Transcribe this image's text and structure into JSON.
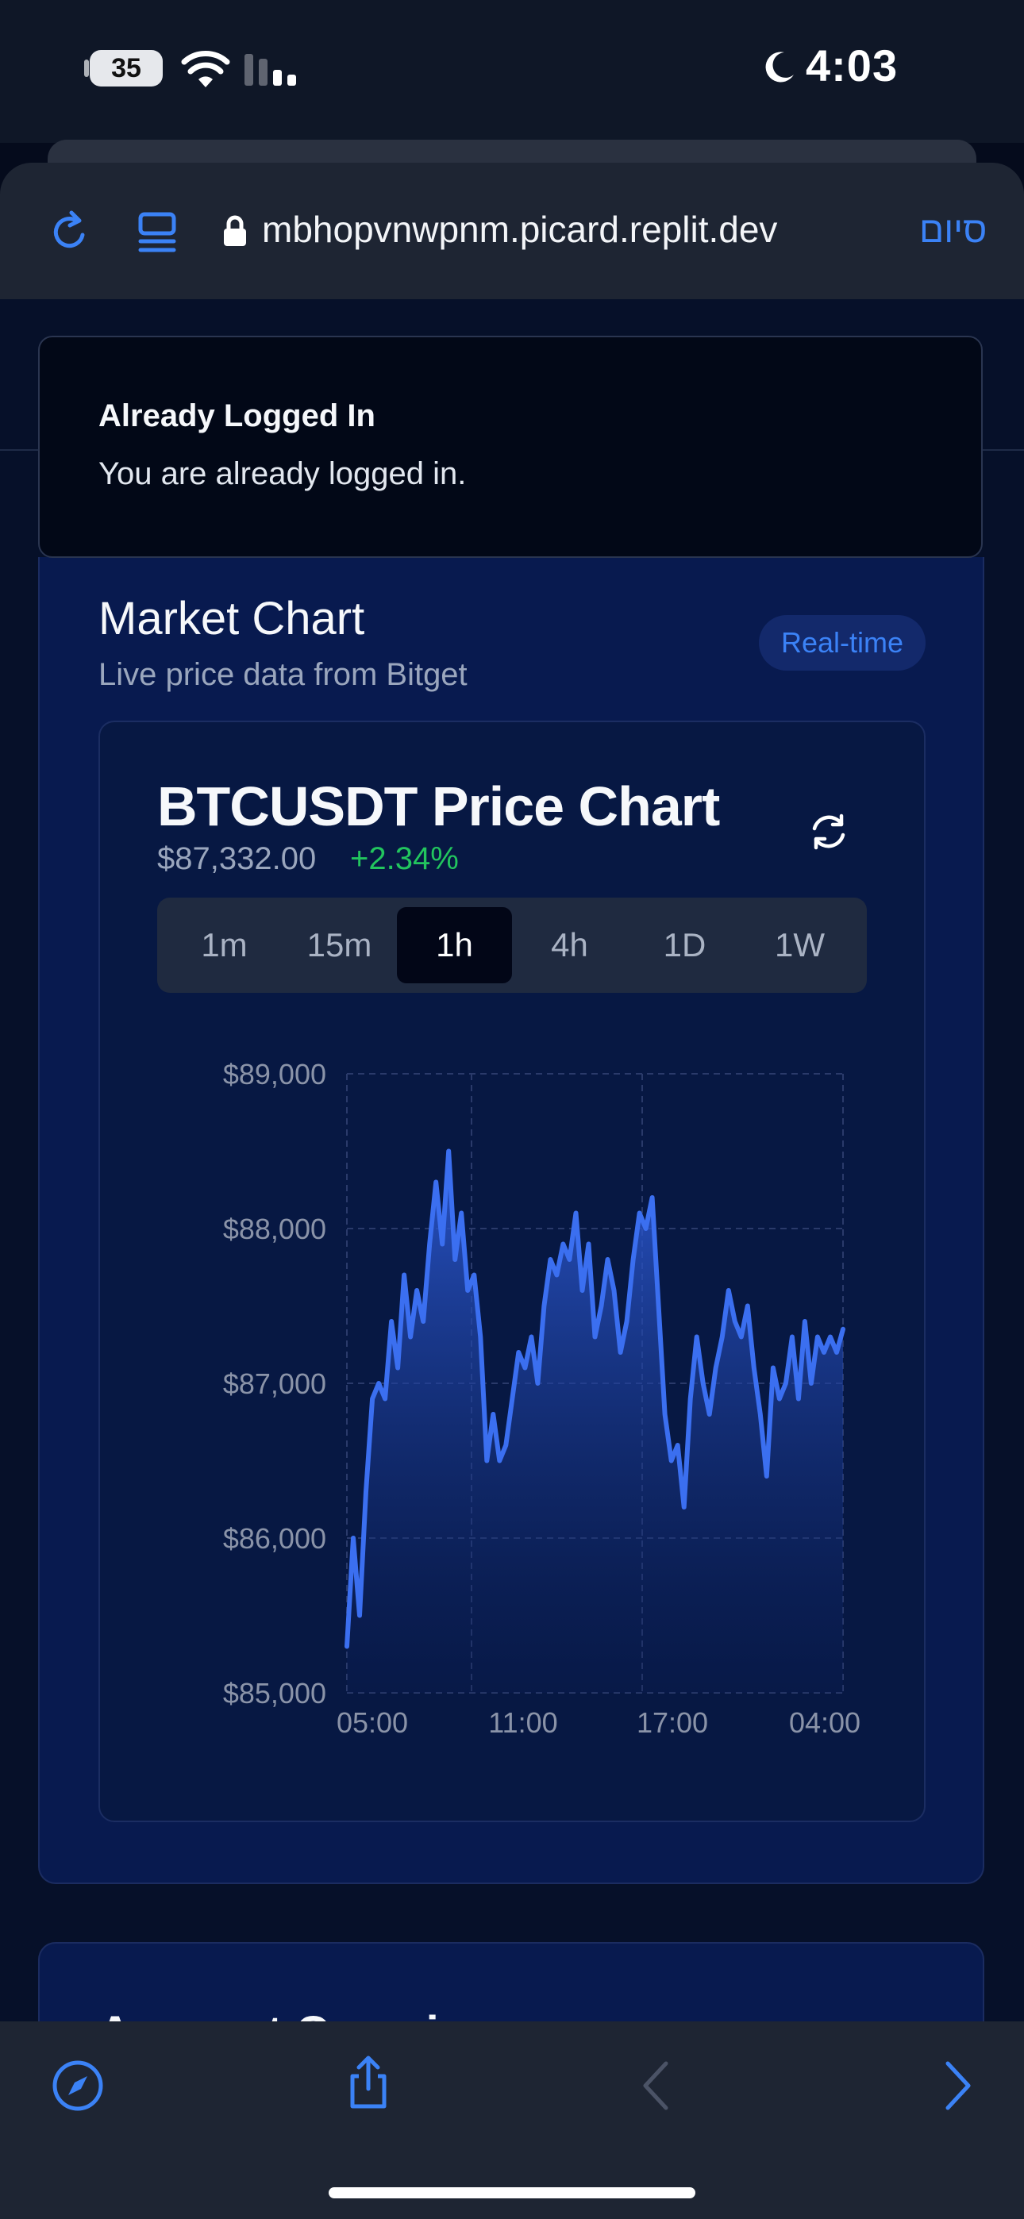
{
  "status_bar": {
    "battery": "35",
    "time": "4:03"
  },
  "browser": {
    "url": "mbhopvnwpnm.picard.replit.dev",
    "done_label": "סיום"
  },
  "toast": {
    "title": "Already Logged In",
    "message": "You are already logged in."
  },
  "card": {
    "title": "Market Chart",
    "subtitle": "Live price data from Bitget",
    "badge": "Real-time"
  },
  "chart_header": {
    "title": "BTCUSDT Price Chart",
    "price": "$87,332.00",
    "change": "+2.34%"
  },
  "timeframes": [
    {
      "label": "1m",
      "active": false
    },
    {
      "label": "15m",
      "active": false
    },
    {
      "label": "1h",
      "active": true
    },
    {
      "label": "4h",
      "active": false
    },
    {
      "label": "1D",
      "active": false
    },
    {
      "label": "1W",
      "active": false
    }
  ],
  "next_card": {
    "title": "Account Overview"
  },
  "colors": {
    "accent": "#3b82f6",
    "positive": "#22c55e",
    "line": "#3b6ff0"
  },
  "chart_data": {
    "type": "area",
    "title": "BTCUSDT Price Chart",
    "xlabel": "",
    "ylabel": "",
    "ylim": [
      85000,
      89000
    ],
    "y_ticks": [
      85000,
      86000,
      87000,
      88000,
      89000
    ],
    "y_tick_labels": [
      "$85,000",
      "$86,000",
      "$87,000",
      "$88,000",
      "$89,000"
    ],
    "x_tick_labels": [
      "05:00",
      "11:00",
      "17:00",
      "04:00"
    ],
    "grid": true,
    "series": [
      {
        "values": [
          85300,
          86000,
          85500,
          86300,
          86900,
          87000,
          86900,
          87400,
          87100,
          87700,
          87300,
          87600,
          87400,
          87900,
          88300,
          87900,
          88500,
          87800,
          88100,
          87600,
          87700,
          87300,
          86500,
          86800,
          86500,
          86600,
          86900,
          87200,
          87100,
          87300,
          87000,
          87500,
          87800,
          87700,
          87900,
          87800,
          88100,
          87600,
          87900,
          87300,
          87500,
          87800,
          87600,
          87200,
          87400,
          87800,
          88100,
          88000,
          88200,
          87500,
          86800,
          86500,
          86600,
          86200,
          86900,
          87300,
          87000,
          86800,
          87100,
          87300,
          87600,
          87400,
          87300,
          87500,
          87100,
          86800,
          86400,
          87100,
          86900,
          87000,
          87300,
          86900,
          87400,
          87000,
          87300,
          87200,
          87300,
          87200,
          87350
        ]
      }
    ]
  }
}
